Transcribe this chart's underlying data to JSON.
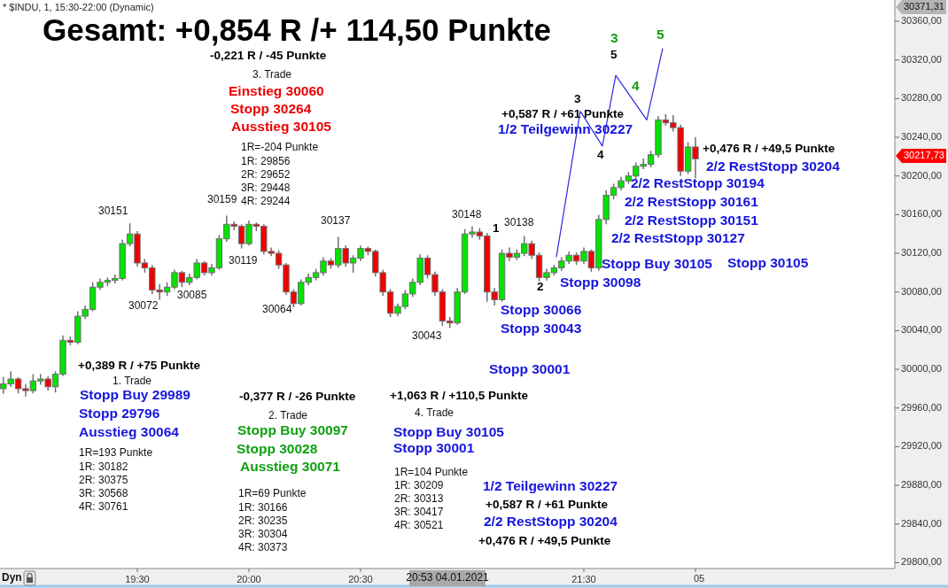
{
  "chart_data": {
    "type": "candlestick",
    "title": "Gesamt: +0,854 R /+ 114,50 Punkte",
    "subtitle": "* $INDU, 1, 15:30-22:00 (Dynamic)",
    "xlim": [
      18.885,
      22.893
    ],
    "ylim": [
      29794,
      30382
    ],
    "xticks": [
      {
        "value": 19.5,
        "label": "19:30"
      },
      {
        "value": 20,
        "label": "20:00"
      },
      {
        "value": 20.5,
        "label": "20:30"
      },
      {
        "value": 21.5,
        "label": "21:30"
      },
      {
        "value": 22,
        "label": null
      }
    ],
    "yticks": [
      {
        "value": 29800,
        "label": "29800,00"
      },
      {
        "value": 29840,
        "label": "29840,00"
      },
      {
        "value": 29880,
        "label": "29880,00"
      },
      {
        "value": 29920,
        "label": "29920,00"
      },
      {
        "value": 29960,
        "label": "29960,00"
      },
      {
        "value": 30000,
        "label": "30000,00"
      },
      {
        "value": 30040,
        "label": "30040,00"
      },
      {
        "value": 30080,
        "label": "30080,00"
      },
      {
        "value": 30120,
        "label": "30120,00"
      },
      {
        "value": 30160,
        "label": "30160,00"
      },
      {
        "value": 30200,
        "label": "30200,00"
      },
      {
        "value": 30240,
        "label": "30240,00"
      },
      {
        "value": 30280,
        "label": "30280,00"
      },
      {
        "value": 30320,
        "label": "30320,00"
      },
      {
        "value": 30360,
        "label": "30360,00"
      }
    ],
    "x": [
      18.9,
      18.9333,
      18.9667,
      19,
      19.0333,
      19.0667,
      19.1,
      19.1333,
      19.1667,
      19.2,
      19.2333,
      19.2667,
      19.3,
      19.3333,
      19.3667,
      19.4,
      19.4333,
      19.4667,
      19.5,
      19.5333,
      19.5667,
      19.6,
      19.6333,
      19.6667,
      19.7,
      19.7333,
      19.7667,
      19.8,
      19.8333,
      19.8667,
      19.9,
      19.9333,
      19.9667,
      20,
      20.0333,
      20.0667,
      20.1,
      20.1333,
      20.1667,
      20.2,
      20.2333,
      20.2667,
      20.3,
      20.3333,
      20.3667,
      20.4,
      20.4333,
      20.4667,
      20.5,
      20.5333,
      20.5667,
      20.6,
      20.6333,
      20.6667,
      20.7,
      20.7333,
      20.7667,
      20.8,
      20.8333,
      20.8667,
      20.9,
      20.9333,
      20.9667,
      21,
      21.0333,
      21.0667,
      21.1,
      21.1333,
      21.1667,
      21.2,
      21.2333,
      21.2667,
      21.3,
      21.3333,
      21.3667,
      21.4,
      21.4333,
      21.4667,
      21.5,
      21.5333,
      21.5667,
      21.6,
      21.6333,
      21.6667,
      21.7,
      21.7333,
      21.7667,
      21.8,
      21.8333,
      21.8667,
      21.9,
      21.9333,
      21.9667,
      22
    ],
    "ohlc": [
      [
        29980,
        29992,
        29975,
        29985
      ],
      [
        29985,
        29998,
        29982,
        29990
      ],
      [
        29990,
        29992,
        29975,
        29980
      ],
      [
        29980,
        29985,
        29972,
        29978
      ],
      [
        29978,
        29995,
        29975,
        29988
      ],
      [
        29988,
        29995,
        29984,
        29990
      ],
      [
        29990,
        29993,
        29978,
        29982
      ],
      [
        29982,
        29998,
        29976,
        29995
      ],
      [
        29995,
        30035,
        29993,
        30030
      ],
      [
        30030,
        30034,
        30025,
        30028
      ],
      [
        30028,
        30060,
        30026,
        30055
      ],
      [
        30055,
        30066,
        30052,
        30062
      ],
      [
        30062,
        30090,
        30060,
        30085
      ],
      [
        30085,
        30094,
        30082,
        30090
      ],
      [
        30090,
        30095,
        30086,
        30092
      ],
      [
        30092,
        30098,
        30089,
        30094
      ],
      [
        30094,
        30134,
        30092,
        30130
      ],
      [
        30130,
        30151,
        30127,
        30140
      ],
      [
        30140,
        30143,
        30106,
        30110
      ],
      [
        30110,
        30114,
        30100,
        30105
      ],
      [
        30105,
        30108,
        30078,
        30082
      ],
      [
        30082,
        30088,
        30072,
        30080
      ],
      [
        30080,
        30090,
        30076,
        30085
      ],
      [
        30085,
        30103,
        30083,
        30100
      ],
      [
        30100,
        30102,
        30085,
        30090
      ],
      [
        30090,
        30099,
        30087,
        30095
      ],
      [
        30095,
        30114,
        30093,
        30110
      ],
      [
        30110,
        30112,
        30097,
        30100
      ],
      [
        30100,
        30109,
        30097,
        30105
      ],
      [
        30105,
        30139,
        30103,
        30135
      ],
      [
        30135,
        30159,
        30132,
        30150
      ],
      [
        30150,
        30153,
        30144,
        30148
      ],
      [
        30148,
        30150,
        30125,
        30130
      ],
      [
        30130,
        30154,
        30128,
        30150
      ],
      [
        30150,
        30152,
        30143,
        30148
      ],
      [
        30148,
        30150,
        30119,
        30122
      ],
      [
        30122,
        30126,
        30117,
        30120
      ],
      [
        30120,
        30123,
        30104,
        30108
      ],
      [
        30108,
        30110,
        30077,
        30080
      ],
      [
        30080,
        30083,
        30064,
        30068
      ],
      [
        30068,
        30093,
        30066,
        30090
      ],
      [
        30090,
        30099,
        30087,
        30095
      ],
      [
        30095,
        30104,
        30092,
        30100
      ],
      [
        30100,
        30116,
        30097,
        30112
      ],
      [
        30112,
        30115,
        30104,
        30108
      ],
      [
        30108,
        30137,
        30105,
        30125
      ],
      [
        30125,
        30128,
        30106,
        30110
      ],
      [
        30110,
        30118,
        30100,
        30115
      ],
      [
        30115,
        30128,
        30112,
        30125
      ],
      [
        30125,
        30127,
        30118,
        30122
      ],
      [
        30122,
        30124,
        30096,
        30100
      ],
      [
        30100,
        30103,
        30076,
        30080
      ],
      [
        30080,
        30083,
        30054,
        30058
      ],
      [
        30058,
        30068,
        30055,
        30065
      ],
      [
        30065,
        30082,
        30062,
        30078
      ],
      [
        30078,
        30094,
        30075,
        30090
      ],
      [
        30090,
        30119,
        30087,
        30115
      ],
      [
        30115,
        30118,
        30094,
        30098
      ],
      [
        30098,
        30101,
        30076,
        30080
      ],
      [
        30080,
        30083,
        30045,
        30050
      ],
      [
        30050,
        30054,
        30043,
        30048
      ],
      [
        30048,
        30084,
        30046,
        30080
      ],
      [
        30080,
        30145,
        30078,
        30140
      ],
      [
        30140,
        30148,
        30136,
        30142
      ],
      [
        30142,
        30146,
        30134,
        30138
      ],
      [
        30138,
        30141,
        30070,
        30080
      ],
      [
        30080,
        30084,
        30066,
        30072
      ],
      [
        30072,
        30124,
        30070,
        30120
      ],
      [
        30120,
        30126,
        30112,
        30116
      ],
      [
        30116,
        30124,
        30113,
        30120
      ],
      [
        30120,
        30138,
        30117,
        30130
      ],
      [
        30130,
        30133,
        30114,
        30118
      ],
      [
        30118,
        30121,
        30091,
        30095
      ],
      [
        30095,
        30104,
        30092,
        30100
      ],
      [
        30100,
        30108,
        30097,
        30105
      ],
      [
        30105,
        30116,
        30102,
        30112
      ],
      [
        30112,
        30122,
        30109,
        30118
      ],
      [
        30118,
        30121,
        30108,
        30112
      ],
      [
        30112,
        30126,
        30109,
        30122
      ],
      [
        30122,
        30124,
        30101,
        30105
      ],
      [
        30105,
        30160,
        30102,
        30155
      ],
      [
        30155,
        30185,
        30150,
        30180
      ],
      [
        30180,
        30192,
        30176,
        30188
      ],
      [
        30188,
        30199,
        30185,
        30195
      ],
      [
        30195,
        30204,
        30192,
        30200
      ],
      [
        30200,
        30214,
        30197,
        30210
      ],
      [
        30210,
        30218,
        30207,
        30212
      ],
      [
        30212,
        30226,
        30209,
        30222
      ],
      [
        30222,
        30262,
        30219,
        30258
      ],
      [
        30258,
        30264,
        30252,
        30255
      ],
      [
        30255,
        30263,
        30246,
        30250
      ],
      [
        30250,
        30253,
        30200,
        30205
      ],
      [
        30205,
        30235,
        30202,
        30230
      ],
      [
        30230,
        30240,
        30198,
        30217.73
      ]
    ],
    "series": [
      {
        "type": "line",
        "color": "#2a2ae0",
        "x": [
          21.377,
          21.484,
          21.583,
          21.643,
          21.782,
          21.853
        ],
        "values": [
          30116,
          30267,
          30231,
          30304,
          30258,
          30332
        ]
      }
    ],
    "annotations": [
      "-0,221 R / -45 Punkte",
      "3. Trade",
      "Einstieg 30060",
      "Stopp 30264",
      "Ausstieg 30105",
      "1R=-204 Punkte",
      "1R: 29856",
      "2R: 29652",
      "3R: 29448",
      "4R: 29244",
      "30151",
      "30159",
      "30119",
      "30137",
      "30148",
      "30138",
      "30072",
      "30085",
      "30064",
      "30043",
      "1",
      "2",
      "3",
      "4",
      "3",
      "5",
      "4",
      "5",
      "+0,587 R / +61 Punkte",
      "1/2 Teilgewinn 30227",
      "+0,476 R / +49,5 Punkte",
      "2/2 RestStopp 30204",
      "2/2 RestStopp 30194",
      "2/2 RestStopp 30161",
      "2/2 RestStopp 30151",
      "2/2 RestStopp 30127",
      "Stopp Buy 30105",
      "Stopp 30105",
      "Stopp 30098",
      "Stopp 30066",
      "Stopp 30043",
      "Stopp 30001",
      "+0,389 R / +75 Punkte",
      "1. Trade",
      "Stopp Buy 29989",
      "Stopp 29796",
      "Ausstieg 30064",
      "1R=193 Punkte",
      "1R: 30182",
      "2R: 30375",
      "3R: 30568",
      "4R: 30761",
      "-0,377 R / -26 Punkte",
      "2. Trade",
      "Stopp Buy 30097",
      "Stopp 30028",
      "Ausstieg 30071",
      "1R=69 Punkte",
      "1R: 30166",
      "2R: 30235",
      "3R: 30304",
      "4R: 30373",
      "+1,063 R / +110,5 Punkte",
      "4. Trade",
      "Stopp Buy 30105",
      "Stopp 30001",
      "1R=104 Punkte",
      "1R: 30209",
      "2R: 30313",
      "3R: 30417",
      "4R: 30521",
      "1/2 Teilgewinn 30227",
      "+0,587 R / +61 Punkte",
      "2/2 RestStopp 30204",
      "+0,476 R / +49,5 Punkte",
      "30371,31",
      "30217,73",
      "20:53 04.01.2021",
      "Dyn",
      "05"
    ]
  }
}
